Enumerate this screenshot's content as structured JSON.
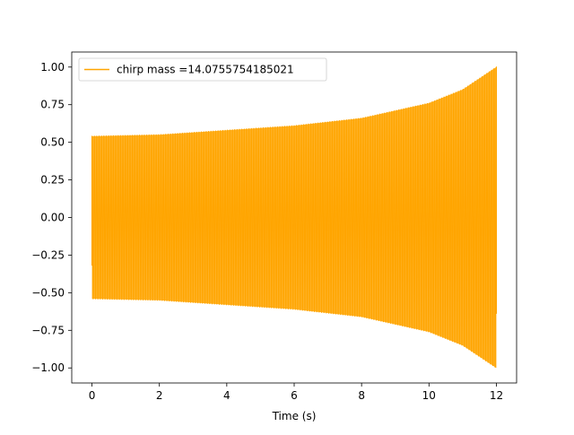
{
  "chart_data": {
    "type": "line",
    "xlabel": "Time (s)",
    "ylabel": "",
    "title": "",
    "xlim": [
      -0.6,
      12.6
    ],
    "ylim": [
      -1.1,
      1.1
    ],
    "x_ticks": [
      0,
      2,
      4,
      6,
      8,
      10,
      12
    ],
    "x_tick_labels": [
      "0",
      "2",
      "4",
      "6",
      "8",
      "10",
      "12"
    ],
    "y_ticks": [
      -1.0,
      -0.75,
      -0.5,
      -0.25,
      0.0,
      0.25,
      0.5,
      0.75,
      1.0
    ],
    "y_tick_labels": [
      "−1.00",
      "−0.75",
      "−0.50",
      "−0.25",
      "0.00",
      "0.25",
      "0.50",
      "0.75",
      "1.00"
    ],
    "grid": false,
    "legend_position": "top-left",
    "series": [
      {
        "name": "chirp mass =14.0755754185021",
        "color": "#FFA500",
        "x_start": 0,
        "x_end": 12,
        "envelope_upper": [
          [
            0,
            0.54
          ],
          [
            2,
            0.55
          ],
          [
            4,
            0.58
          ],
          [
            6,
            0.61
          ],
          [
            8,
            0.66
          ],
          [
            10,
            0.76
          ],
          [
            11,
            0.85
          ],
          [
            12,
            1.0
          ]
        ],
        "envelope_lower": [
          [
            0,
            -0.54
          ],
          [
            2,
            -0.55
          ],
          [
            4,
            -0.58
          ],
          [
            6,
            -0.61
          ],
          [
            8,
            -0.66
          ],
          [
            10,
            -0.76
          ],
          [
            11,
            -0.85
          ],
          [
            12,
            -1.0
          ]
        ],
        "start_value": -0.32,
        "end_value": -0.64
      }
    ]
  }
}
